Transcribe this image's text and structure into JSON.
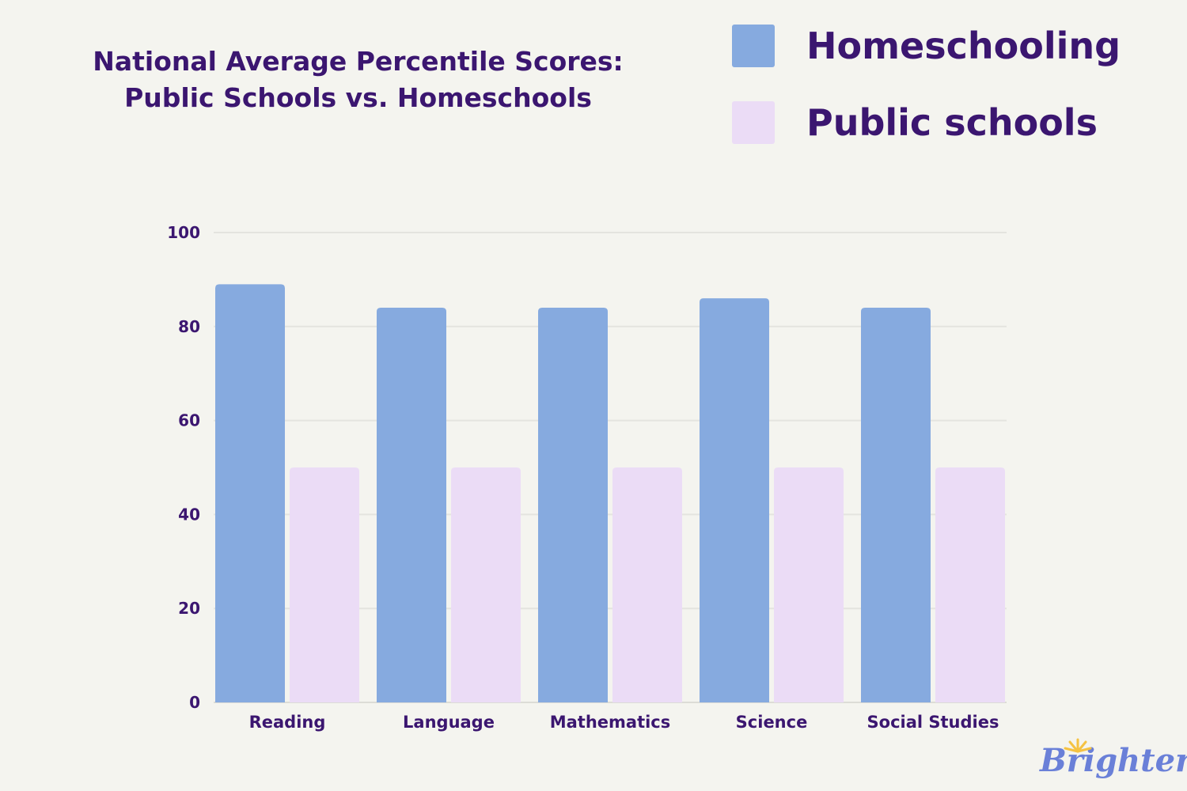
{
  "chart_data": {
    "type": "bar",
    "title": "National Average Percentile Scores:\nPublic Schools vs. Homeschools",
    "title_lines": [
      "National Average Percentile Scores:",
      "Public Schools vs. Homeschools"
    ],
    "categories": [
      "Reading",
      "Language",
      "Mathematics",
      "Science",
      "Social Studies"
    ],
    "series": [
      {
        "name": "Homeschooling",
        "values": [
          89,
          84,
          84,
          86,
          84
        ],
        "color": "#86aadf"
      },
      {
        "name": "Public schools",
        "values": [
          50,
          50,
          50,
          50,
          50
        ],
        "color": "#ebdcf6"
      }
    ],
    "xlabel": "",
    "ylabel": "",
    "ylim": [
      0,
      100
    ],
    "yticks": [
      0,
      20,
      40,
      60,
      80,
      100
    ],
    "grid": true,
    "legend_position": "top-right"
  },
  "branding": {
    "logo_text": "Brighterly",
    "logo_color": "#6a80d8",
    "sun_color": "#f5c242"
  },
  "colors": {
    "background": "#f4f4ef",
    "text": "#3b1670",
    "grid": "#e4e4df"
  }
}
